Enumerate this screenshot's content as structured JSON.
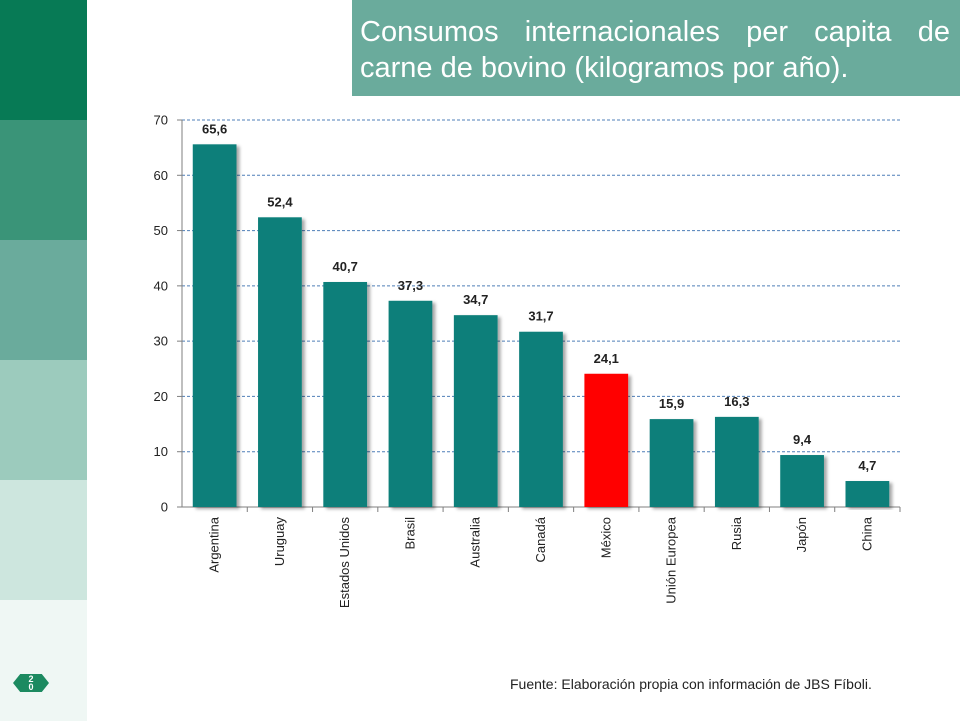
{
  "slide": {
    "title": "Consumos internacionales per capita de carne de bovino (kilogramos por año).",
    "page_number": "2\n0",
    "source": "Fuente:  Elaboración propia con información de JBS Fíboli.",
    "strip_colors": [
      "#077a55",
      "#3a9478",
      "#6aab9c",
      "#9ccbbd",
      "#cde6de",
      "#eff7f4"
    ]
  },
  "chart_data": {
    "type": "bar",
    "title": "",
    "xlabel": "",
    "ylabel": "",
    "categories": [
      "Argentina",
      "Uruguay",
      "Estados Unidos",
      "Brasil",
      "Australia",
      "Canadá",
      "México",
      "Unión Europea",
      "Rusia",
      "Japón",
      "China"
    ],
    "values": [
      65.6,
      52.4,
      40.7,
      37.3,
      34.7,
      31.7,
      24.1,
      15.9,
      16.3,
      9.4,
      4.7
    ],
    "value_labels": [
      "65,6",
      "52,4",
      "40,7",
      "37,3",
      "34,7",
      "31,7",
      "24,1",
      "15,9",
      "16,3",
      "9,4",
      "4,7"
    ],
    "ylim": [
      0,
      70
    ],
    "yticks": [
      0,
      10,
      20,
      30,
      40,
      50,
      60,
      70
    ],
    "grid": true,
    "legend": "none",
    "bar_color": "#0b7f7a",
    "highlight_color": "#ff0000",
    "highlight_category": "México"
  }
}
